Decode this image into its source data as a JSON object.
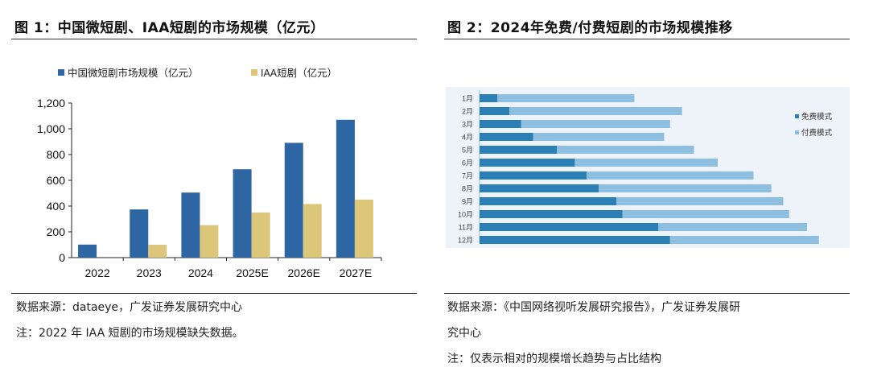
{
  "figure1": {
    "title": "图 1：中国微短剧、IAA短剧的市场规模（亿元）",
    "source": "数据来源：dataeye，广发证券发展研究中心",
    "note": "注：2022 年 IAA 短剧的市场规模缺失数据。"
  },
  "figure2": {
    "title": "图 2：2024年免费/付费短剧的市场规模推移",
    "source_line1": "数据来源：《中国网络视听发展研究报告》，广发证券发展研",
    "source_line2": "究中心",
    "note": "注：仅表示相对的规模增长趋势与占比结构"
  },
  "chart_data": [
    {
      "type": "bar",
      "categories": [
        "2022",
        "2023",
        "2024",
        "2025E",
        "2026E",
        "2027E"
      ],
      "series": [
        {
          "name": "中国微短剧市场规模（亿元）",
          "color": "#2e65a3",
          "values": [
            101,
            374,
            505,
            686,
            891,
            1070
          ]
        },
        {
          "name": "IAA短剧（亿元）",
          "color": "#dcc679",
          "values": [
            null,
            100,
            252,
            350,
            416,
            450
          ]
        }
      ],
      "ylim": [
        0,
        1200
      ],
      "yticks": [
        0,
        200,
        400,
        600,
        800,
        1000,
        1200
      ],
      "ytick_labels": [
        "0",
        "200",
        "400",
        "600",
        "800",
        "1,000",
        "1,200"
      ],
      "legend_position": "top",
      "grid": false
    },
    {
      "type": "bar",
      "orientation": "horizontal",
      "stacked": true,
      "categories": [
        "1月",
        "2月",
        "3月",
        "4月",
        "5月",
        "6月",
        "7月",
        "8月",
        "9月",
        "10月",
        "11月",
        "12月"
      ],
      "series": [
        {
          "name": "免费模式",
          "color": "#2a7fb5",
          "values": [
            3,
            5,
            7,
            9,
            13,
            16,
            18,
            20,
            23,
            24,
            30,
            32
          ]
        },
        {
          "name": "付费模式",
          "color": "#8fbfe0",
          "values": [
            23,
            29,
            25,
            22,
            23,
            24,
            28,
            29,
            28,
            28,
            25,
            25
          ]
        }
      ],
      "legend_position": "right",
      "grid": false,
      "background": "#eef3fa"
    }
  ]
}
